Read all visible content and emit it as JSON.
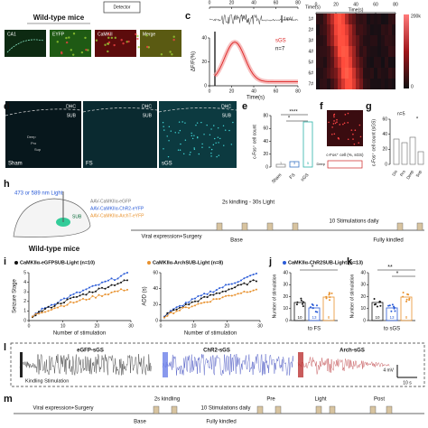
{
  "panel_labels": {
    "c": "c",
    "d": "d",
    "e": "e",
    "f": "f",
    "g": "g",
    "h": "h",
    "i": "i",
    "j": "j",
    "k": "k",
    "l": "l",
    "m": "m"
  },
  "a": {
    "title": "Wild-type mice",
    "detector": "Detector",
    "region": "CA1",
    "channels": [
      "EYFP",
      "CaMKII",
      "Merge"
    ]
  },
  "c": {
    "trace_scale": "1mV",
    "trace_time_label": "Time(s)",
    "trace_xticks": [
      0,
      20,
      40,
      60,
      80
    ],
    "ylabel": "ΔF/F(%)",
    "yticks": [
      0,
      20,
      40
    ],
    "xticks": [
      0,
      20,
      40,
      60,
      80
    ],
    "xlabel": "Time(s)",
    "legend": "sGS",
    "n": "n=7",
    "heatmap_time_label": "Time(s)",
    "heatmap_xticks": [
      0,
      20,
      40,
      60,
      80
    ],
    "rows": [
      "1#",
      "2#",
      "3#",
      "4#",
      "5#",
      "6#",
      "7#"
    ],
    "colorbar": [
      "200k",
      "0"
    ]
  },
  "d": {
    "regions": [
      "DHC",
      "SUB"
    ],
    "layers": [
      "Deep",
      "Pro",
      "Sup"
    ],
    "groups": [
      "Sham",
      "FS",
      "sGS"
    ]
  },
  "e": {
    "ylabel": "c-Fos⁺ cell count",
    "yticks": [
      0,
      20,
      40,
      60,
      80
    ],
    "categories": [
      "Sham",
      "FS",
      "sGS"
    ],
    "n": [
      "3",
      "3",
      "5"
    ],
    "sig": [
      "****",
      "*"
    ]
  },
  "f": {
    "label": "c-Fos⁺ cell (%, sGS)",
    "layer": "Deep"
  },
  "g": {
    "ylabel": "c-Fos⁺ cell count (sGS)",
    "yticks": [
      0,
      20,
      40,
      60
    ],
    "n": "n=5",
    "sig": "*",
    "categories": [
      "Dis",
      "Pro",
      "Deep",
      "Sup"
    ]
  },
  "h": {
    "light": "473 or 589 nm Light",
    "region": "SUB",
    "viruses": [
      "AAV-CaMKIIα-eGFP",
      "AAV-CaMKIIα-ChR2-eYFP",
      "AAV-CaMKIIα-ArchT-eYFP"
    ],
    "mice": "Wild-type mice",
    "protocol": "2s kindling - 30s Light",
    "daily": "10 Stimulations daily",
    "surgery": "Viral expression+Surgery",
    "base": "Base",
    "end": "Fully kindled"
  },
  "i": {
    "legend": [
      "CaMKIIα-eGFPSUB-Light (n=10)",
      "CaMKIIα-ArchSUB-Light (n=8)",
      "CaMKIIα-ChR2SUB-Light (n=13)"
    ],
    "stage_ylabel": "Seizure Stage",
    "stage_yticks": [
      0,
      1,
      2,
      3,
      4,
      5
    ],
    "add_ylabel": "ADD (s)",
    "add_yticks": [
      0,
      20,
      40,
      60
    ],
    "xticks": [
      0,
      10,
      20,
      30
    ],
    "xlabel": "Number of stimulation"
  },
  "j": {
    "ylabel": "Number of stimulation",
    "yticks": [
      0,
      10,
      20,
      30,
      40
    ],
    "category": "to FS",
    "sig": "*",
    "n": [
      "10",
      "13",
      "8"
    ]
  },
  "k": {
    "category": "to sGS",
    "sig": [
      "**",
      "*"
    ],
    "n": [
      "10",
      "13",
      "8"
    ]
  },
  "l": {
    "traces": [
      "eGFP-sGS",
      "ChR2-sGS",
      "Arch-sGS"
    ],
    "stimulation": "Kindling Stimulation",
    "vscale": "4 mV",
    "tscale": "10 s"
  },
  "m": {
    "surgery": "Viral expression+Surgery",
    "kindling": "2s kindling",
    "daily": "10 Stimulations daily",
    "phases": [
      "Pre",
      "Light",
      "Post"
    ],
    "base": "Base",
    "end": "Fully kindled"
  }
}
